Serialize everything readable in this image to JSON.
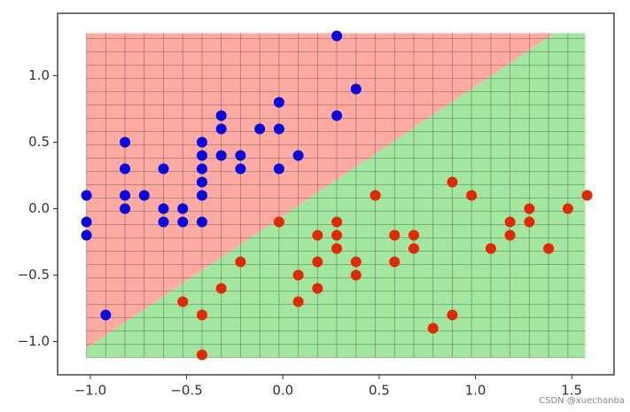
{
  "chart_data": {
    "type": "scatter",
    "xlim": [
      -1.17,
      1.72
    ],
    "ylim": [
      -1.25,
      1.47
    ],
    "xticks": [
      {
        "value": -1.0,
        "label": "−1.0"
      },
      {
        "value": -0.5,
        "label": "−0.5"
      },
      {
        "value": 0.0,
        "label": "0.0"
      },
      0.5,
      {
        "value": 1.0,
        "label": "1.0"
      },
      1.5
    ],
    "yticks": [
      {
        "value": -1.0,
        "label": "−1.0"
      },
      {
        "value": -0.5,
        "label": "−0.5"
      },
      {
        "value": 0.0,
        "label": "0.0"
      },
      0.5,
      {
        "value": 1.0,
        "label": "1.0"
      }
    ],
    "decision_region": {
      "xlim": [
        -1.02,
        1.57
      ],
      "ylim": [
        -1.12,
        1.32
      ],
      "mesh_step": 0.1,
      "boundary": {
        "x": [
          -1.02,
          1.41
        ],
        "y": [
          -1.05,
          1.32
        ]
      },
      "above_color": "#fdaaa2",
      "below_color": "#a3e6a0"
    },
    "series": [
      {
        "color": "#0a0adc",
        "x": [
          -1.02,
          -1.02,
          -1.02,
          -0.92,
          -0.82,
          -0.82,
          -0.82,
          -0.82,
          -0.72,
          -0.62,
          -0.62,
          -0.62,
          -0.52,
          -0.52,
          -0.42,
          -0.42,
          -0.42,
          -0.42,
          -0.42,
          -0.42,
          -0.32,
          -0.32,
          -0.32,
          -0.22,
          -0.22,
          -0.12,
          -0.02,
          -0.02,
          -0.02,
          0.08,
          0.28,
          0.28,
          0.38
        ],
        "values": [
          0.1,
          -0.1,
          -0.2,
          -0.8,
          0.5,
          0.3,
          0.1,
          0.0,
          0.1,
          0.3,
          0.0,
          -0.1,
          0.0,
          -0.1,
          0.5,
          0.4,
          0.3,
          0.2,
          0.1,
          -0.1,
          0.7,
          0.6,
          0.4,
          0.4,
          0.3,
          0.6,
          0.8,
          0.6,
          0.3,
          0.4,
          1.3,
          0.7,
          0.9
        ]
      },
      {
        "color": "#e02a05",
        "x": [
          -0.52,
          -0.42,
          -0.42,
          -0.32,
          -0.22,
          -0.02,
          0.08,
          0.08,
          0.18,
          0.18,
          0.18,
          0.28,
          0.28,
          0.28,
          0.38,
          0.38,
          0.48,
          0.58,
          0.58,
          0.68,
          0.68,
          0.78,
          0.88,
          0.88,
          0.98,
          1.08,
          1.18,
          1.18,
          1.28,
          1.28,
          1.38,
          1.48,
          1.58
        ],
        "values": [
          -0.7,
          -0.8,
          -1.1,
          -0.6,
          -0.4,
          -0.1,
          -0.5,
          -0.7,
          -0.2,
          -0.4,
          -0.6,
          -0.1,
          -0.2,
          -0.3,
          -0.4,
          -0.5,
          0.1,
          -0.2,
          -0.4,
          -0.2,
          -0.3,
          -0.9,
          0.2,
          -0.8,
          0.1,
          -0.3,
          -0.1,
          -0.2,
          0.0,
          -0.1,
          -0.3,
          0.0,
          0.1
        ]
      }
    ],
    "watermark": "CSDN @xuechanba"
  }
}
